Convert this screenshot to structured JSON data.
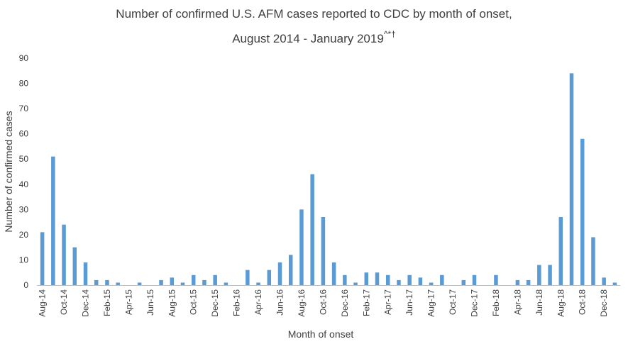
{
  "chart_data": {
    "type": "bar",
    "title_line1": "Number of confirmed U.S. AFM cases reported to CDC by month of onset,",
    "title_line2": "August 2014 - January 2019",
    "title_superscript": "^*†",
    "xlabel": "Month of onset",
    "ylabel": "Number of confirmed cases",
    "ylim": [
      0,
      90
    ],
    "yticks": [
      0,
      10,
      20,
      30,
      40,
      50,
      60,
      70,
      80,
      90
    ],
    "grid": false,
    "bar_color": "#5b9bd5",
    "categories": [
      "Aug-14",
      "Sep-14",
      "Oct-14",
      "Nov-14",
      "Dec-14",
      "Jan-15",
      "Feb-15",
      "Mar-15",
      "Apr-15",
      "May-15",
      "Jun-15",
      "Jul-15",
      "Aug-15",
      "Sep-15",
      "Oct-15",
      "Nov-15",
      "Dec-15",
      "Jan-16",
      "Feb-16",
      "Mar-16",
      "Apr-16",
      "May-16",
      "Jun-16",
      "Jul-16",
      "Aug-16",
      "Sep-16",
      "Oct-16",
      "Nov-16",
      "Dec-16",
      "Jan-17",
      "Feb-17",
      "Mar-17",
      "Apr-17",
      "May-17",
      "Jun-17",
      "Jul-17",
      "Aug-17",
      "Sep-17",
      "Oct-17",
      "Nov-17",
      "Dec-17",
      "Jan-18",
      "Feb-18",
      "Mar-18",
      "Apr-18",
      "May-18",
      "Jun-18",
      "Jul-18",
      "Aug-18",
      "Sep-18",
      "Oct-18",
      "Nov-18",
      "Dec-18",
      "Jan-19"
    ],
    "values": [
      21,
      51,
      24,
      15,
      9,
      2,
      2,
      1,
      0,
      1,
      0,
      2,
      3,
      1,
      4,
      2,
      4,
      1,
      0,
      6,
      1,
      6,
      9,
      12,
      30,
      44,
      27,
      9,
      4,
      1,
      5,
      5,
      4,
      2,
      4,
      3,
      1,
      4,
      0,
      2,
      4,
      0,
      4,
      0,
      2,
      2,
      8,
      8,
      27,
      84,
      58,
      19,
      3,
      1
    ],
    "xtick_labels": [
      "Aug-14",
      "Oct-14",
      "Dec-14",
      "Feb-15",
      "Apr-15",
      "Jun-15",
      "Aug-15",
      "Oct-15",
      "Dec-15",
      "Feb-16",
      "Apr-16",
      "Jun-16",
      "Aug-16",
      "Oct-16",
      "Dec-16",
      "Feb-17",
      "Apr-17",
      "Jun-17",
      "Aug-17",
      "Oct-17",
      "Dec-17",
      "Feb-18",
      "Apr-18",
      "Jun-18",
      "Aug-18",
      "Oct-18",
      "Dec-18"
    ]
  }
}
